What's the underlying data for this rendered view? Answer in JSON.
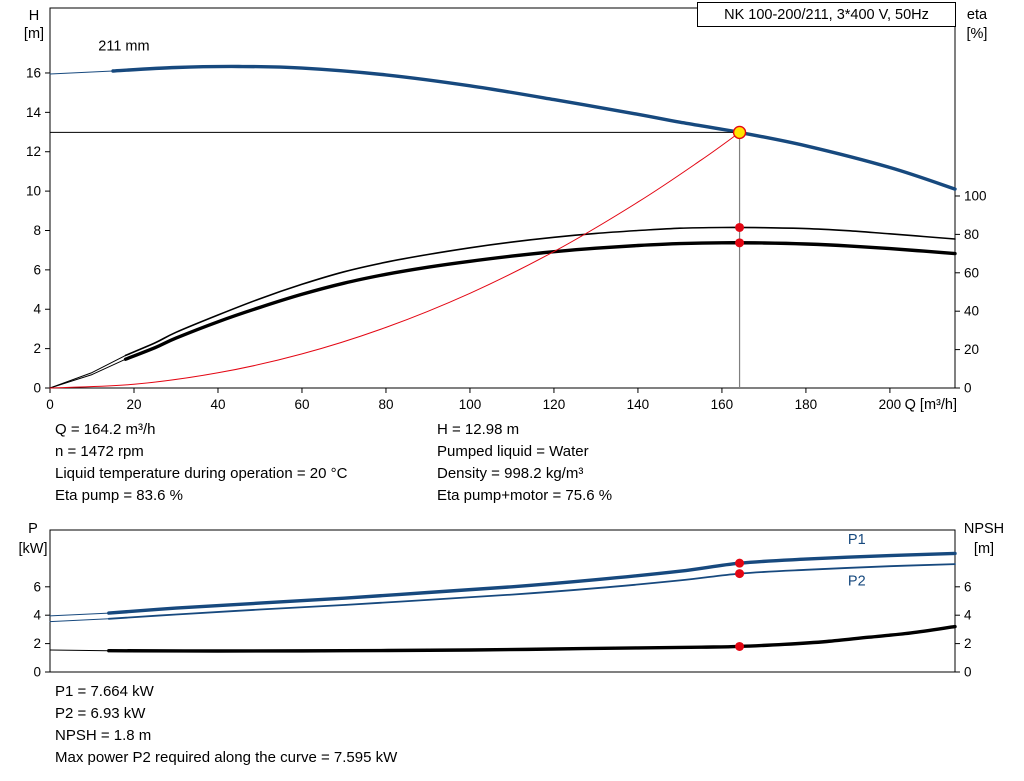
{
  "header": {
    "title": "NK 100-200/211, 3*400 V, 50Hz"
  },
  "duty_info": {
    "left": [
      "Q = 164.2 m³/h",
      "n = 1472 rpm",
      "Liquid temperature during operation = 20 °C",
      "Eta pump = 83.6 %"
    ],
    "right": [
      "H = 12.98 m",
      "Pumped liquid = Water",
      "Density = 998.2 kg/m³",
      "Eta pump+motor = 75.6 %"
    ]
  },
  "result_info": {
    "lines": [
      "P1 = 7.664 kW",
      "P2 = 6.93 kW",
      "NPSH = 1.8 m",
      "Max power P2 required along the curve = 7.595 kW"
    ]
  },
  "colors": {
    "curve_blue": "#17497E",
    "curve_black": "#000000",
    "red": "#E30613",
    "duty_yellow": "#FFE400",
    "guide_gray": "#808080"
  },
  "chart_data": [
    {
      "type": "line",
      "title": "NK 100-200/211, 3*400 V, 50Hz",
      "x_axis": {
        "label": "Q [m³/h]",
        "min": 0,
        "max": 215.5,
        "ticks": [
          0,
          20,
          40,
          60,
          80,
          100,
          120,
          140,
          160,
          180,
          200
        ]
      },
      "y_left": {
        "label": "H [m]",
        "min": 0,
        "max": 19.3,
        "ticks": [
          0,
          2,
          4,
          6,
          8,
          10,
          12,
          14,
          16
        ]
      },
      "y_right": {
        "label": "eta [%]",
        "min": 0,
        "max": 197.9,
        "ticks": [
          0,
          20,
          40,
          60,
          80,
          100
        ]
      },
      "series": [
        {
          "name": "head-211mm",
          "axis": "left",
          "color": "#17497E",
          "width": 3.4,
          "lead_until": 15,
          "points": [
            [
              0,
              15.95
            ],
            [
              15,
              16.1
            ],
            [
              30,
              16.28
            ],
            [
              45,
              16.33
            ],
            [
              60,
              16.25
            ],
            [
              80,
              15.9
            ],
            [
              100,
              15.35
            ],
            [
              120,
              14.65
            ],
            [
              140,
              13.9
            ],
            [
              150,
              13.5
            ],
            [
              164.2,
              12.98
            ],
            [
              180,
              12.3
            ],
            [
              200,
              11.2
            ],
            [
              215.5,
              10.1
            ]
          ]
        },
        {
          "name": "eta-pump",
          "axis": "right",
          "color": "#000000",
          "width": 1.6,
          "lead_until": 18,
          "points": [
            [
              0,
              0
            ],
            [
              10,
              8
            ],
            [
              18,
              17
            ],
            [
              25,
              23.5
            ],
            [
              30,
              29
            ],
            [
              40,
              38
            ],
            [
              50,
              46.5
            ],
            [
              60,
              54
            ],
            [
              70,
              60.5
            ],
            [
              80,
              65.5
            ],
            [
              90,
              69.5
            ],
            [
              100,
              73
            ],
            [
              110,
              76
            ],
            [
              120,
              78.5
            ],
            [
              130,
              80.5
            ],
            [
              140,
              82
            ],
            [
              150,
              83.2
            ],
            [
              160,
              83.6
            ],
            [
              170,
              83.5
            ],
            [
              180,
              83
            ],
            [
              190,
              81.9
            ],
            [
              200,
              80.3
            ],
            [
              208,
              78.9
            ],
            [
              215.5,
              77.6
            ]
          ]
        },
        {
          "name": "eta-pump-motor",
          "axis": "right",
          "color": "#000000",
          "width": 3.4,
          "lead_until": 18,
          "points": [
            [
              0,
              0
            ],
            [
              10,
              7
            ],
            [
              18,
              15
            ],
            [
              25,
              21
            ],
            [
              30,
              26
            ],
            [
              40,
              34.5
            ],
            [
              50,
              42
            ],
            [
              60,
              48.8
            ],
            [
              70,
              54.6
            ],
            [
              80,
              59.2
            ],
            [
              90,
              62.9
            ],
            [
              100,
              66
            ],
            [
              110,
              68.7
            ],
            [
              120,
              71
            ],
            [
              130,
              72.8
            ],
            [
              140,
              74.2
            ],
            [
              150,
              75.2
            ],
            [
              160,
              75.6
            ],
            [
              170,
              75.5
            ],
            [
              180,
              75
            ],
            [
              190,
              74
            ],
            [
              200,
              72.6
            ],
            [
              208,
              71.3
            ],
            [
              215.5,
              70
            ]
          ]
        },
        {
          "name": "system-curve",
          "axis": "left",
          "color": "#E30613",
          "width": 1,
          "points": [
            [
              0,
              0
            ],
            [
              20,
              0.19
            ],
            [
              40,
              0.77
            ],
            [
              60,
              1.73
            ],
            [
              80,
              3.08
            ],
            [
              100,
              4.81
            ],
            [
              120,
              6.93
            ],
            [
              140,
              9.44
            ],
            [
              155,
              11.57
            ],
            [
              164.2,
              12.98
            ]
          ]
        }
      ],
      "guides": [
        {
          "name": "duty-head-line",
          "axis": "left",
          "from": [
            0,
            12.98
          ],
          "to": [
            164.2,
            12.98
          ],
          "color": "#000000",
          "width": 1
        },
        {
          "name": "duty-flow-line",
          "axis": "left",
          "from": [
            164.2,
            0
          ],
          "to": [
            164.2,
            12.98
          ],
          "color": "#808080",
          "width": 1.2
        }
      ],
      "markers": [
        {
          "name": "duty-point",
          "axis": "left",
          "x": 164.2,
          "y": 12.98,
          "r": 6,
          "fill": "#FFE400",
          "stroke": "#E30613",
          "stroke_width": 1.4
        },
        {
          "name": "eta-pump-point",
          "axis": "right",
          "x": 164.2,
          "y": 83.6,
          "r": 4.5,
          "fill": "#E30613"
        },
        {
          "name": "eta-pump-motor-point",
          "axis": "right",
          "x": 164.2,
          "y": 75.6,
          "r": 4.5,
          "fill": "#E30613"
        }
      ],
      "annotations": [
        {
          "name": "impeller-diameter-label",
          "text": "211 mm",
          "axis": "left",
          "x": 11.5,
          "y": 17.15,
          "color": "#000000"
        }
      ]
    },
    {
      "type": "line",
      "title": "Power and NPSH curves",
      "x_axis": {
        "label": "",
        "min": 0,
        "max": 215.5,
        "ticks": []
      },
      "y_left": {
        "label": "P [kW]",
        "min": 0,
        "max": 10,
        "ticks": [
          0,
          2,
          4,
          6
        ]
      },
      "y_right": {
        "label": "NPSH [m]",
        "min": 0,
        "max": 10,
        "ticks": [
          0,
          2,
          4,
          6
        ]
      },
      "series": [
        {
          "name": "p1",
          "axis": "left",
          "color": "#17497E",
          "width": 3.4,
          "lead_until": 14,
          "points": [
            [
              0,
              3.95
            ],
            [
              14,
              4.15
            ],
            [
              30,
              4.5
            ],
            [
              50,
              4.85
            ],
            [
              70,
              5.2
            ],
            [
              90,
              5.6
            ],
            [
              110,
              6.0
            ],
            [
              130,
              6.5
            ],
            [
              150,
              7.1
            ],
            [
              164.2,
              7.664
            ],
            [
              180,
              7.95
            ],
            [
              200,
              8.2
            ],
            [
              215.5,
              8.35
            ]
          ]
        },
        {
          "name": "p2",
          "axis": "left",
          "color": "#17497E",
          "width": 1.8,
          "lead_until": 14,
          "points": [
            [
              0,
              3.55
            ],
            [
              14,
              3.75
            ],
            [
              30,
              4.05
            ],
            [
              50,
              4.4
            ],
            [
              70,
              4.72
            ],
            [
              90,
              5.08
            ],
            [
              110,
              5.45
            ],
            [
              130,
              5.9
            ],
            [
              150,
              6.45
            ],
            [
              164.2,
              6.93
            ],
            [
              180,
              7.2
            ],
            [
              200,
              7.45
            ],
            [
              215.5,
              7.6
            ]
          ]
        },
        {
          "name": "npsh",
          "axis": "right",
          "color": "#000000",
          "width": 3.4,
          "lead_until": 14,
          "points": [
            [
              0,
              1.55
            ],
            [
              14,
              1.5
            ],
            [
              40,
              1.48
            ],
            [
              70,
              1.5
            ],
            [
              100,
              1.55
            ],
            [
              120,
              1.62
            ],
            [
              140,
              1.7
            ],
            [
              155,
              1.75
            ],
            [
              164.2,
              1.8
            ],
            [
              175,
              1.95
            ],
            [
              185,
              2.15
            ],
            [
              195,
              2.45
            ],
            [
              205,
              2.75
            ],
            [
              215.5,
              3.2
            ]
          ]
        }
      ],
      "guides": [],
      "markers": [
        {
          "name": "p1-point",
          "axis": "left",
          "x": 164.2,
          "y": 7.664,
          "r": 4.5,
          "fill": "#E30613"
        },
        {
          "name": "p2-point",
          "axis": "left",
          "x": 164.2,
          "y": 6.93,
          "r": 4.5,
          "fill": "#E30613"
        },
        {
          "name": "npsh-point",
          "axis": "right",
          "x": 164.2,
          "y": 1.8,
          "r": 4.5,
          "fill": "#E30613"
        }
      ],
      "annotations": [
        {
          "name": "p1-curve-label",
          "text": "P1",
          "axis": "left",
          "x": 190,
          "y": 9.0,
          "color": "#17497E"
        },
        {
          "name": "p2-curve-label",
          "text": "P2",
          "axis": "left",
          "x": 190,
          "y": 6.1,
          "color": "#17497E"
        }
      ]
    }
  ]
}
